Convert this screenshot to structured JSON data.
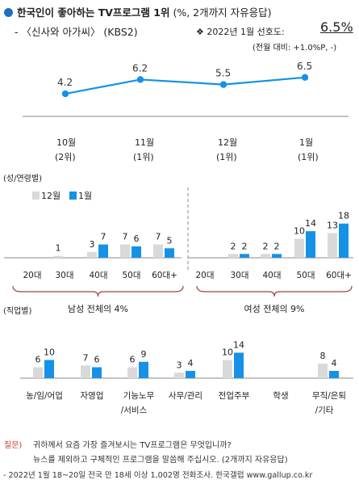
{
  "header": {
    "title": "한국인이 좋아하는 TV프로그램 1위",
    "title_note": "(%, 2개까지 자유응답)",
    "program": "- 〈신사와 아가씨〉 (KBS2)",
    "pref_label": "❖ 2022년 1월 선호도:",
    "pref_value": "6.5%",
    "pref_change": "(전월 대비: +1.0%P, -)"
  },
  "colors": {
    "accent": "#1e6fc6",
    "blue": "#1592e6",
    "gray": "#d9d9d9"
  },
  "chart_data": [
    {
      "type": "line",
      "categories": [
        [
          "10월",
          "(2위)"
        ],
        [
          "11월",
          "(1위)"
        ],
        [
          "12월",
          "(1위)"
        ],
        [
          "1월",
          "(1위)"
        ]
      ],
      "values": [
        4.2,
        6.2,
        5.5,
        6.5
      ]
    },
    {
      "type": "bar",
      "section_label": "(성/연령별)",
      "legend": [
        "12월",
        "1월"
      ],
      "groups": [
        {
          "label": "남성 전체의 4%",
          "categories": [
            "20대",
            "30대",
            "40대",
            "50대",
            "60대+"
          ],
          "series": [
            {
              "name": "12월",
              "values": [
                null,
                1,
                3,
                7,
                7
              ]
            },
            {
              "name": "1월",
              "values": [
                null,
                null,
                7,
                6,
                5
              ]
            }
          ]
        },
        {
          "label": "여성 전체의 9%",
          "categories": [
            "20대",
            "30대",
            "40대",
            "50대",
            "60대+"
          ],
          "series": [
            {
              "name": "12월",
              "values": [
                null,
                2,
                2,
                10,
                13
              ]
            },
            {
              "name": "1월",
              "values": [
                null,
                2,
                2,
                14,
                18
              ]
            }
          ]
        }
      ]
    },
    {
      "type": "bar",
      "section_label": "(직업별)",
      "categories": [
        [
          "농/임/어업"
        ],
        [
          "자영업"
        ],
        [
          "기능노무",
          "/서비스"
        ],
        [
          "사무/관리"
        ],
        [
          "전업주부"
        ],
        [
          "학생"
        ],
        [
          "무직/은퇴",
          "/기타"
        ]
      ],
      "series": [
        {
          "name": "12월",
          "values": [
            6,
            7,
            6,
            3,
            10,
            null,
            8
          ]
        },
        {
          "name": "1월",
          "values": [
            10,
            6,
            9,
            4,
            14,
            null,
            4
          ]
        }
      ]
    }
  ],
  "footer": {
    "question_label": "질문)",
    "question_1": "귀하께서 요즘 가장 즐겨보시는 TV프로그램은 무엇입니까?",
    "question_2": "뉴스를 제외하고 구체적인 프로그램을 말씀해 주십시오. (2개까지 자유응답)",
    "source": "- 2022년 1월 18~20일 전국 만 18세 이상 1,002명 전화조사. 한국갤럽 www.gallup.co.kr"
  }
}
